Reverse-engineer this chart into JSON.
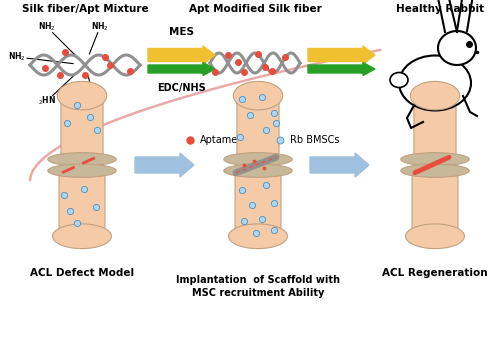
{
  "title_top_left": "Silk fiber/Apt Mixture",
  "title_top_mid": "Apt Modified Silk fiber",
  "title_top_right": "Healthy Rabbit",
  "label_bot_left": "ACL Defect Model",
  "label_bot_mid": "Implantation  of Scaffold with\nMSC recruitment Ability",
  "label_bot_right": "ACL Regeneration",
  "label_aptamer": "Aptamer",
  "label_bmscs": "Rb BMSCs",
  "arrow_label_top": "MES",
  "arrow_label_bot": "EDC/NHS",
  "bg_color": "#ffffff",
  "bone_color": "#F5CBA7",
  "bone_edge_color": "#C0A080",
  "condyle_color": "#C8B89A",
  "blue_dot_color": "#4A90C4",
  "blue_dot_face": "#AED6F1",
  "red_dot_color": "#E74C3C",
  "arrow_yellow_color": "#F0C030",
  "arrow_green_color": "#28A028",
  "fiber_color": "#909090",
  "pink_curve_color": "#E8A0A0",
  "blue_arrow_color": "#A0C0E0"
}
